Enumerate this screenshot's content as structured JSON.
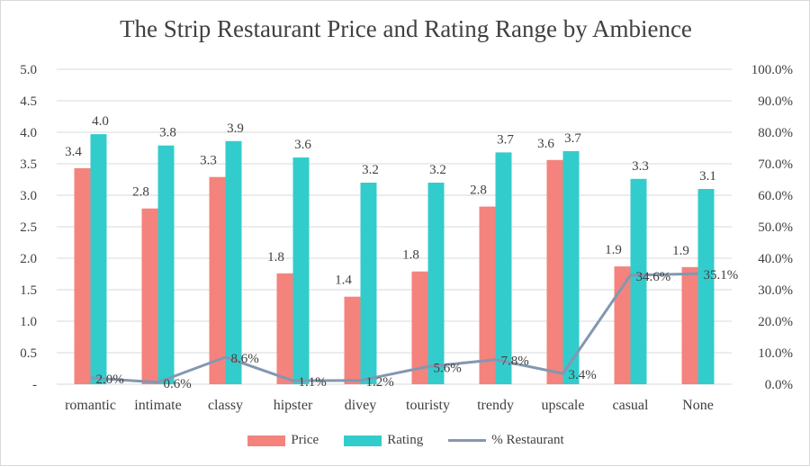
{
  "chart_data": {
    "type": "bar",
    "title": "The Strip Restaurant Price and Rating Range by Ambience",
    "categories": [
      "romantic",
      "intimate",
      "classy",
      "hipster",
      "divey",
      "touristy",
      "trendy",
      "upscale",
      "casual",
      "None"
    ],
    "series": [
      {
        "name": "Price",
        "kind": "bar",
        "axis": "left",
        "color": "#f4837d",
        "values": [
          3.43,
          2.79,
          3.29,
          1.76,
          1.39,
          1.79,
          2.82,
          3.56,
          1.87,
          1.86
        ],
        "labels": [
          "3.4",
          "2.8",
          "3.3",
          "1.8",
          "1.4",
          "1.8",
          "2.8",
          "3.6",
          "1.9",
          "1.9"
        ]
      },
      {
        "name": "Rating",
        "kind": "bar",
        "axis": "left",
        "color": "#33cccc",
        "values": [
          3.97,
          3.79,
          3.86,
          3.6,
          3.2,
          3.2,
          3.68,
          3.7,
          3.26,
          3.1
        ],
        "labels": [
          "4.0",
          "3.8",
          "3.9",
          "3.6",
          "3.2",
          "3.2",
          "3.7",
          "3.7",
          "3.3",
          "3.1"
        ]
      },
      {
        "name": "% Restaurant",
        "kind": "line",
        "axis": "right",
        "color": "#8497b0",
        "values": [
          2.0,
          0.6,
          8.6,
          1.1,
          1.2,
          5.6,
          7.8,
          3.4,
          34.6,
          35.1
        ],
        "labels": [
          "2.0%",
          "0.6%",
          "8.6%",
          "1.1%",
          "1.2%",
          "5.6%",
          "7.8%",
          "3.4%",
          "34.6%",
          "35.1%"
        ]
      }
    ],
    "ylim": [
      0,
      5.0
    ],
    "y2lim": [
      0,
      100
    ],
    "y_ticks": [
      "-",
      "0.5",
      "1.0",
      "1.5",
      "2.0",
      "2.5",
      "3.0",
      "3.5",
      "4.0",
      "4.5",
      "5.0"
    ],
    "y2_ticks": [
      "0.0%",
      "10.0%",
      "20.0%",
      "30.0%",
      "40.0%",
      "50.0%",
      "60.0%",
      "70.0%",
      "80.0%",
      "90.0%",
      "100.0%"
    ],
    "grid": true,
    "legend_position": "bottom"
  }
}
